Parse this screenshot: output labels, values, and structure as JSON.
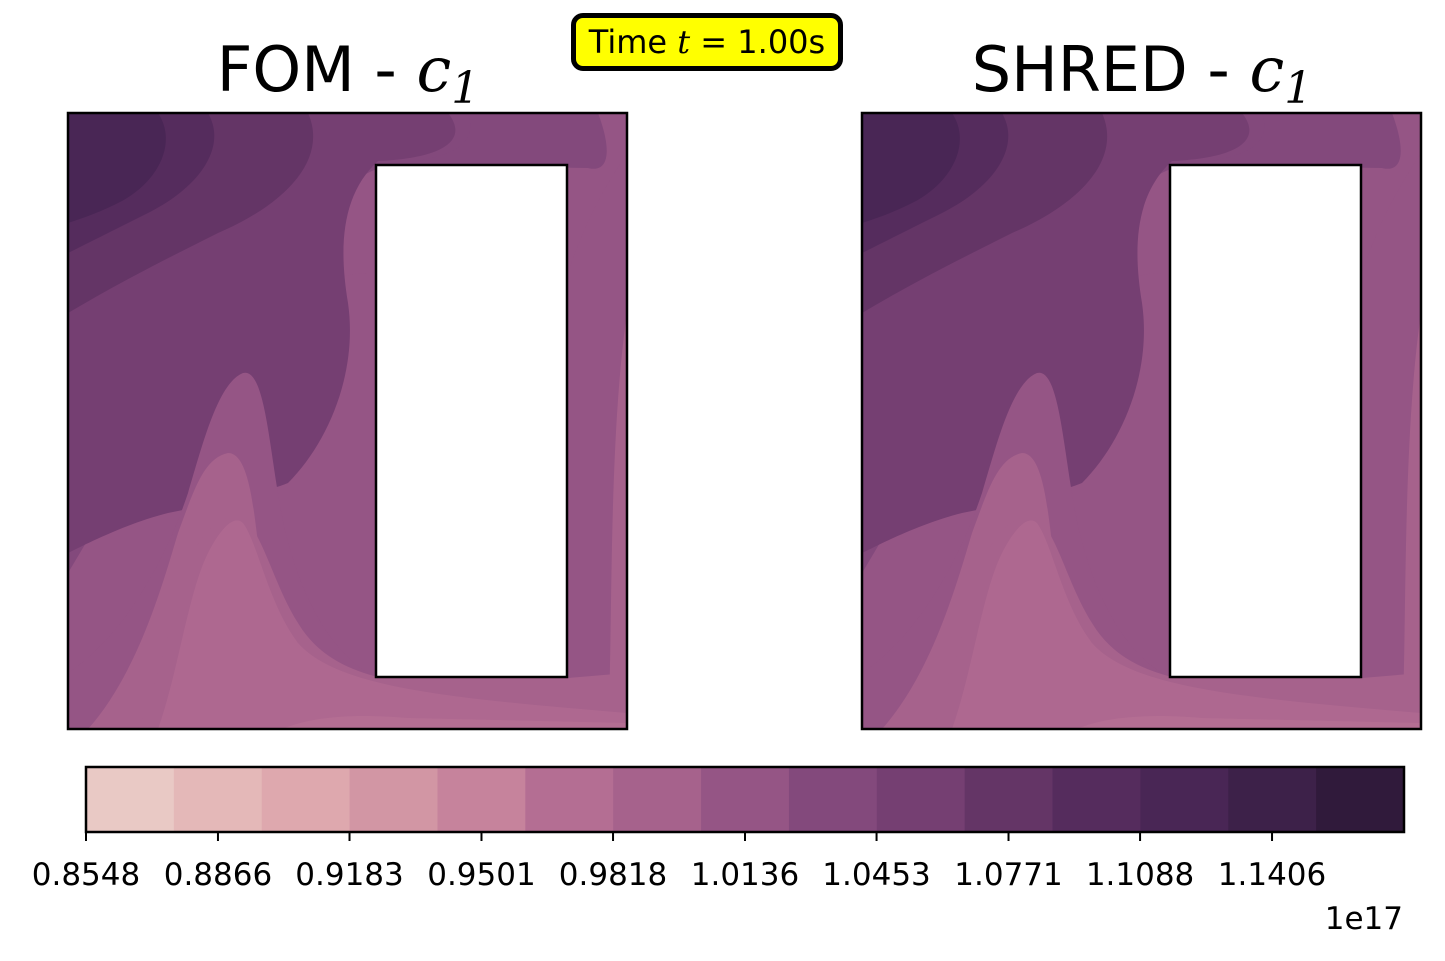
{
  "time_badge": {
    "prefix": "Time ",
    "variable": "t",
    "equals": " = ",
    "value": "1.00s"
  },
  "colors": {
    "badge_bg": "#ffff00",
    "levels": [
      "#e9c9c5",
      "#e4b8b8",
      "#dea8ae",
      "#d296a4",
      "#c6839c",
      "#b46e93",
      "#a6628c",
      "#955585",
      "#83497c",
      "#753f72",
      "#643566",
      "#552c5d",
      "#492655",
      "#3d2149",
      "#301a3b"
    ]
  },
  "chart_data": [
    {
      "type": "contour",
      "title_text": "FOM - ",
      "title_var": "c",
      "title_sub": "1",
      "field": "c_1",
      "time": "1.00s"
    },
    {
      "type": "contour",
      "title_text": "SHRED - ",
      "title_var": "c",
      "title_sub": "1",
      "field": "c_1",
      "time": "1.00s"
    }
  ],
  "colorbar": {
    "min": 0.8548,
    "max": 1.1724,
    "ticks": [
      "0.8548",
      "0.8866",
      "0.9183",
      "0.9501",
      "0.9818",
      "1.0136",
      "1.0453",
      "1.0771",
      "1.1088",
      "1.1406"
    ],
    "offset_label": "1e17"
  }
}
